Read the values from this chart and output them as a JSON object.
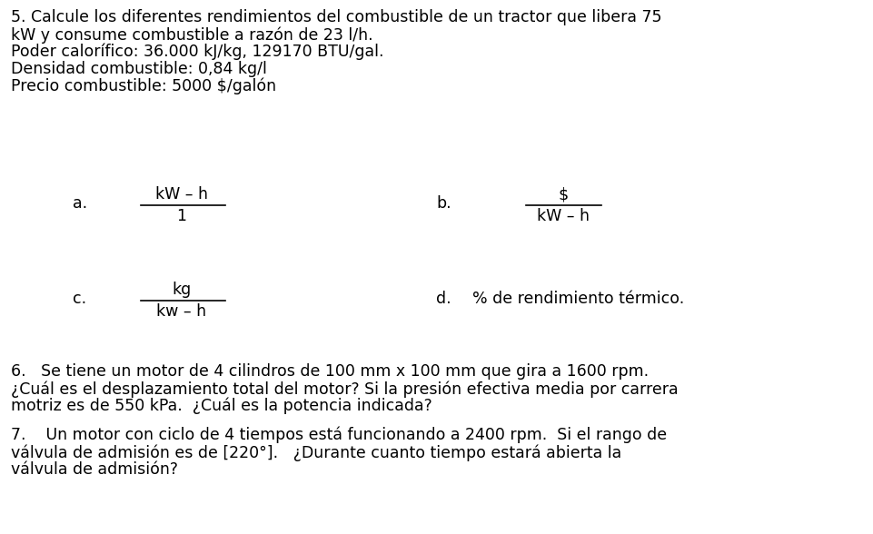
{
  "bg_color": "#ffffff",
  "text_color": "#000000",
  "font_family": "DejaVu Sans",
  "font_size": 12.5,
  "line1": "5. Calcule los diferentes rendimientos del combustible de un tractor que libera 75",
  "line2": "kW y consume combustible a razón de 23 l/h.",
  "line3": "Poder calorífico: 36.000 kJ/kg, 129170 BTU/gal.",
  "line4": "Densidad combustible: 0,84 kg/l",
  "line5": "Precio combustible: 5000 $/galón",
  "section_a_label": "a.",
  "section_a_num": "kW – h",
  "section_a_den": "1",
  "section_b_label": "b.",
  "section_b_num": "$",
  "section_b_den": "kW – h",
  "section_c_label": "c.",
  "section_c_num": "kg",
  "section_c_den": "kw – h",
  "section_d_label": "d.",
  "section_d_text": "% de rendimiento térmico.",
  "q6_line1": "6.   Se tiene un motor de 4 cilindros de 100 mm x 100 mm que gira a 1600 rpm.",
  "q6_line2": "¿Cuál es el desplazamiento total del motor? Si la presión efectiva media por carrera",
  "q6_line3": "motriz es de 550 kPa.  ¿Cuál es la potencia indicada?",
  "q7_line1": "7.    Un motor con ciclo de 4 tiempos está funcionando a 2400 rpm.  Si el rango de",
  "q7_line2": "válvula de admisión es de [220°].   ¿Durante cuanto tiempo estará abierta la",
  "q7_line3": "válvula de admisión?"
}
